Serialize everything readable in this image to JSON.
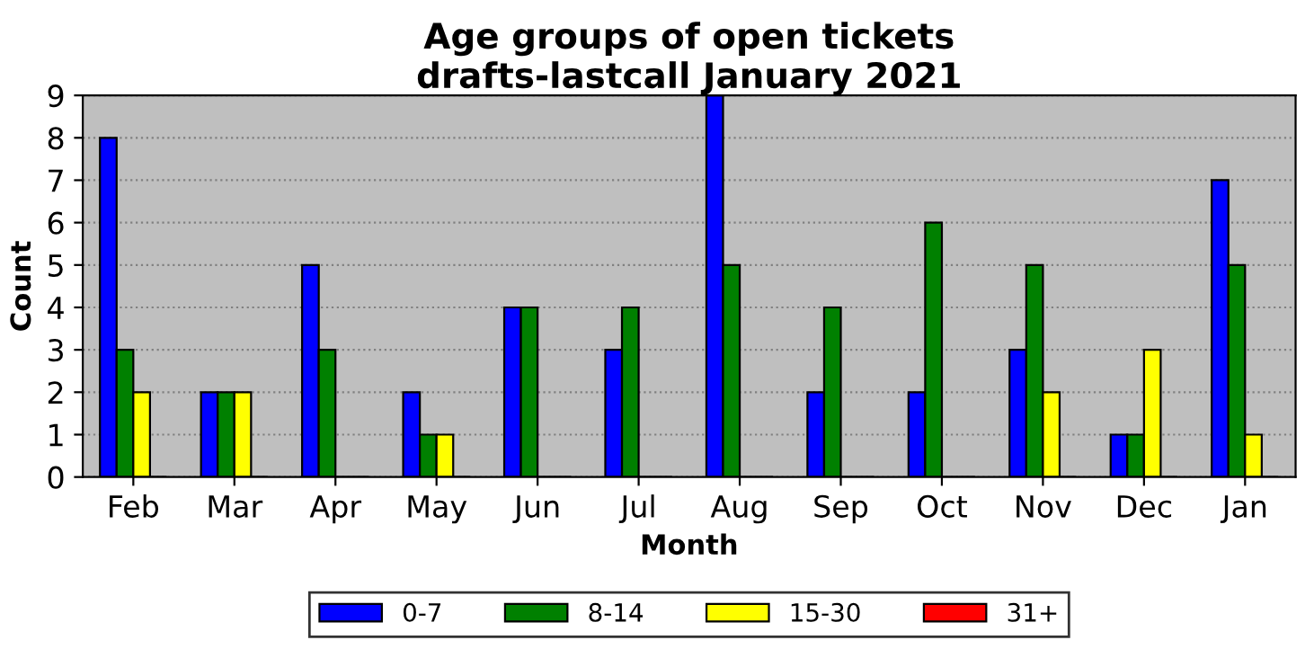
{
  "chart_data": {
    "type": "bar",
    "title": "Age groups of open tickets\ndrafts-lastcall January 2021",
    "xlabel": "Month",
    "ylabel": "Count",
    "categories": [
      "Feb",
      "Mar",
      "Apr",
      "May",
      "Jun",
      "Jul",
      "Aug",
      "Sep",
      "Oct",
      "Nov",
      "Dec",
      "Jan"
    ],
    "series": [
      {
        "name": "0-7",
        "color": "#0000ff",
        "values": [
          8,
          2,
          5,
          2,
          4,
          3,
          9,
          2,
          2,
          3,
          1,
          7
        ]
      },
      {
        "name": "8-14",
        "color": "#008000",
        "values": [
          3,
          2,
          3,
          1,
          4,
          4,
          5,
          4,
          6,
          5,
          1,
          5
        ]
      },
      {
        "name": "15-30",
        "color": "#ffff00",
        "values": [
          2,
          2,
          0,
          1,
          0,
          0,
          0,
          0,
          0,
          2,
          3,
          1
        ]
      },
      {
        "name": "31+",
        "color": "#ff0000",
        "values": [
          0,
          0,
          0,
          0,
          0,
          0,
          0,
          0,
          0,
          0,
          0,
          0
        ]
      }
    ],
    "ylim": [
      0,
      9
    ],
    "yticks": [
      0,
      1,
      2,
      3,
      4,
      5,
      6,
      7,
      8,
      9
    ],
    "grid": "y",
    "legend": "bottom"
  }
}
